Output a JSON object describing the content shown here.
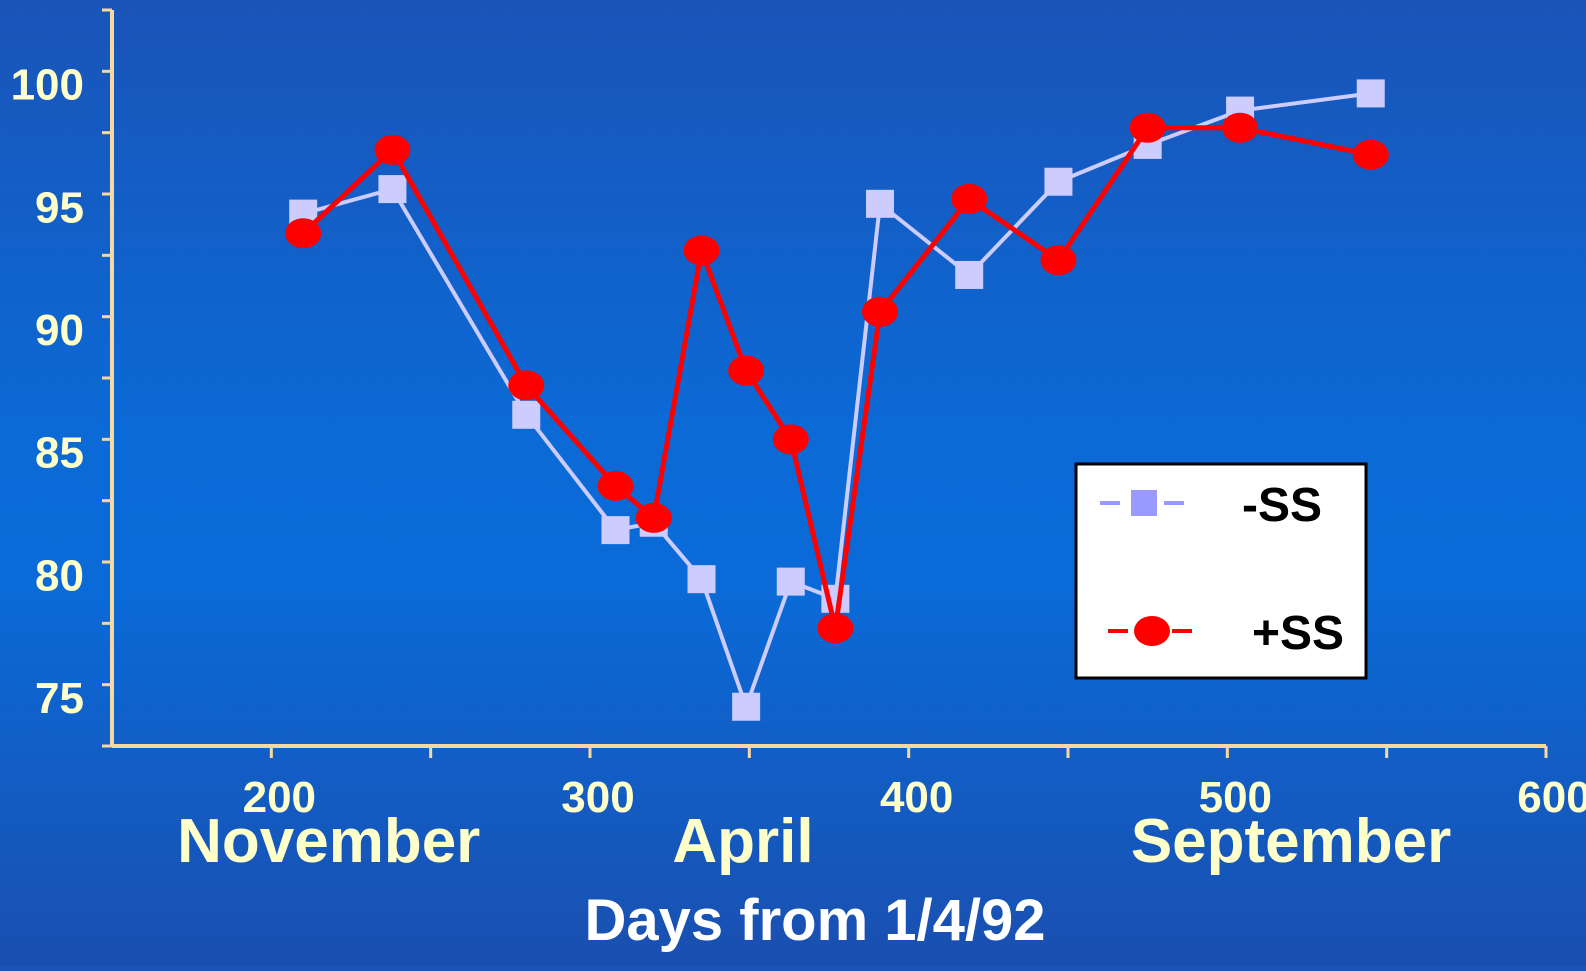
{
  "chart_data": {
    "type": "line",
    "xlabel": "Days from 1/4/92",
    "ylabel": "",
    "xlim": [
      150,
      600
    ],
    "ylim": [
      73,
      103
    ],
    "x_ticks": [
      200,
      300,
      400,
      500,
      600
    ],
    "y_ticks": [
      75,
      80,
      85,
      90,
      95,
      100
    ],
    "month_labels": [
      {
        "text": "November",
        "x": 218
      },
      {
        "text": "April",
        "x": 348
      },
      {
        "text": "September",
        "x": 520
      }
    ],
    "legend_position": "lower-right",
    "series": [
      {
        "name": "-SS",
        "marker": "square",
        "color": "#ccccff",
        "legend_marker_color": "#9999ff",
        "points": [
          [
            210,
            94.7
          ],
          [
            238,
            95.7
          ],
          [
            280,
            86.5
          ],
          [
            308,
            81.8
          ],
          [
            320,
            82.1
          ],
          [
            335,
            79.8
          ],
          [
            349,
            74.6
          ],
          [
            363,
            79.7
          ],
          [
            377,
            79.0
          ],
          [
            391,
            95.1
          ],
          [
            419,
            92.2
          ],
          [
            447,
            96.0
          ],
          [
            475,
            97.5
          ],
          [
            504,
            98.9
          ],
          [
            545,
            99.6
          ]
        ]
      },
      {
        "name": "+SS",
        "marker": "circle",
        "color": "#ff0000",
        "legend_marker_color": "#ff0000",
        "points": [
          [
            210,
            93.9
          ],
          [
            238,
            97.3
          ],
          [
            280,
            87.7
          ],
          [
            308,
            83.6
          ],
          [
            320,
            82.3
          ],
          [
            335,
            93.2
          ],
          [
            349,
            88.3
          ],
          [
            363,
            85.5
          ],
          [
            377,
            77.8
          ],
          [
            391,
            90.7
          ],
          [
            419,
            95.3
          ],
          [
            447,
            92.8
          ],
          [
            475,
            98.2
          ],
          [
            504,
            98.2
          ],
          [
            545,
            97.1
          ]
        ]
      }
    ]
  }
}
